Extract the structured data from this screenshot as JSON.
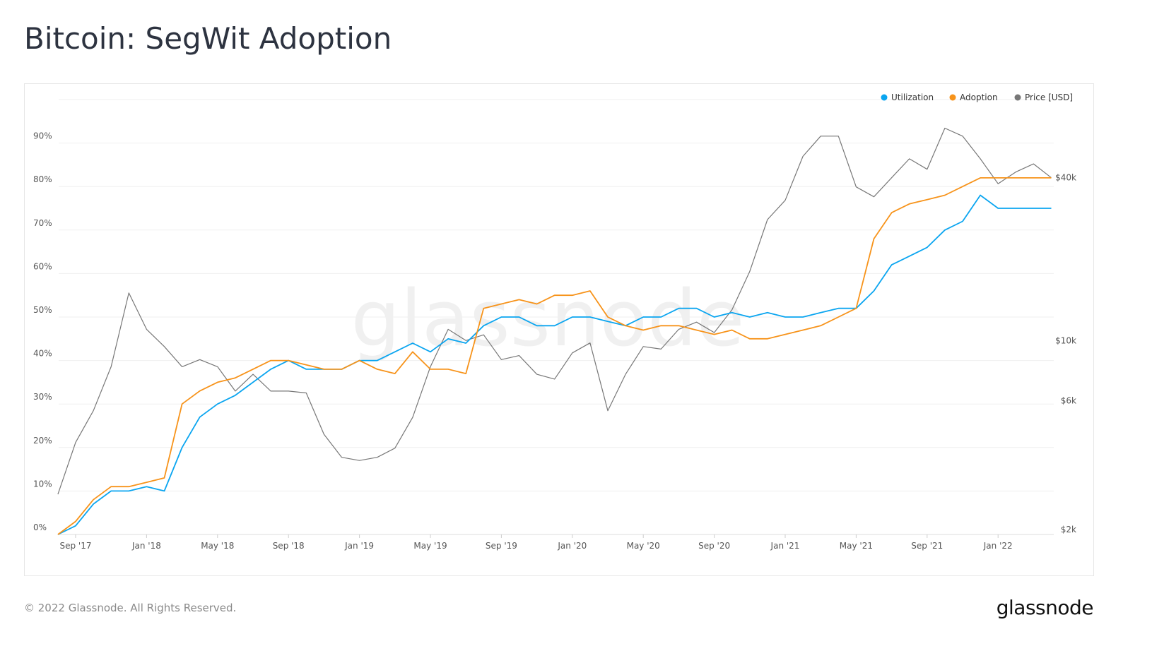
{
  "title": "Bitcoin: SegWit Adoption",
  "footer": "© 2022 Glassnode. All Rights Reserved.",
  "logo": "glassnode",
  "watermark": "glassnode",
  "chart_data": {
    "type": "line",
    "title": "Bitcoin: SegWit Adoption",
    "legend_position": "top-right",
    "grid": true,
    "x": [
      "2017-08",
      "2017-09",
      "2017-10",
      "2017-11",
      "2017-12",
      "2018-01",
      "2018-02",
      "2018-03",
      "2018-04",
      "2018-05",
      "2018-06",
      "2018-07",
      "2018-08",
      "2018-09",
      "2018-10",
      "2018-11",
      "2018-12",
      "2019-01",
      "2019-02",
      "2019-03",
      "2019-04",
      "2019-05",
      "2019-06",
      "2019-07",
      "2019-08",
      "2019-09",
      "2019-10",
      "2019-11",
      "2019-12",
      "2020-01",
      "2020-02",
      "2020-03",
      "2020-04",
      "2020-05",
      "2020-06",
      "2020-07",
      "2020-08",
      "2020-09",
      "2020-10",
      "2020-11",
      "2020-12",
      "2021-01",
      "2021-02",
      "2021-03",
      "2021-04",
      "2021-05",
      "2021-06",
      "2021-07",
      "2021-08",
      "2021-09",
      "2021-10",
      "2021-11",
      "2021-12",
      "2022-01",
      "2022-02",
      "2022-03",
      "2022-04"
    ],
    "x_ticks": [
      {
        "date": "2017-09",
        "label": "Sep '17"
      },
      {
        "date": "2018-01",
        "label": "Jan '18"
      },
      {
        "date": "2018-05",
        "label": "May '18"
      },
      {
        "date": "2018-09",
        "label": "Sep '18"
      },
      {
        "date": "2019-01",
        "label": "Jan '19"
      },
      {
        "date": "2019-05",
        "label": "May '19"
      },
      {
        "date": "2019-09",
        "label": "Sep '19"
      },
      {
        "date": "2020-01",
        "label": "Jan '20"
      },
      {
        "date": "2020-05",
        "label": "May '20"
      },
      {
        "date": "2020-09",
        "label": "Sep '20"
      },
      {
        "date": "2021-01",
        "label": "Jan '21"
      },
      {
        "date": "2021-05",
        "label": "May '21"
      },
      {
        "date": "2021-09",
        "label": "Sep '21"
      },
      {
        "date": "2022-01",
        "label": "Jan '22"
      }
    ],
    "y_left": {
      "range": [
        0,
        100
      ],
      "unit": "%",
      "ticks": [
        0,
        10,
        20,
        30,
        40,
        50,
        60,
        70,
        80,
        90
      ],
      "labels": [
        "0%",
        "10%",
        "20%",
        "30%",
        "40%",
        "50%",
        "60%",
        "70%",
        "80%",
        "90%"
      ]
    },
    "y_right": {
      "scale": "log",
      "range": [
        2000,
        64000
      ],
      "ticks": [
        2000,
        6000,
        10000,
        40000
      ],
      "labels": [
        "$2k",
        "$6k",
        "$10k",
        "$40k"
      ]
    },
    "series": [
      {
        "name": "Utilization",
        "axis": "left",
        "color": "#0aa5f0",
        "values": [
          0,
          2,
          7,
          10,
          10,
          11,
          10,
          20,
          27,
          30,
          32,
          35,
          38,
          40,
          38,
          38,
          38,
          40,
          40,
          42,
          44,
          42,
          45,
          44,
          48,
          50,
          50,
          48,
          48,
          50,
          50,
          49,
          48,
          50,
          50,
          52,
          52,
          50,
          51,
          50,
          51,
          50,
          50,
          51,
          52,
          52,
          56,
          62,
          64,
          66,
          70,
          72,
          78,
          75,
          75,
          75,
          75
        ]
      },
      {
        "name": "Adoption",
        "axis": "left",
        "color": "#f7931a",
        "values": [
          0,
          3,
          8,
          11,
          11,
          12,
          13,
          30,
          33,
          35,
          36,
          38,
          40,
          40,
          39,
          38,
          38,
          40,
          38,
          37,
          42,
          38,
          38,
          37,
          52,
          53,
          54,
          53,
          55,
          55,
          56,
          50,
          48,
          47,
          48,
          48,
          47,
          46,
          47,
          45,
          45,
          46,
          47,
          48,
          50,
          52,
          68,
          74,
          76,
          77,
          78,
          80,
          82,
          82,
          82,
          82,
          82
        ]
      },
      {
        "name": "Price [USD]",
        "axis": "right",
        "color": "#777777",
        "values": [
          2700,
          4200,
          5500,
          8000,
          15000,
          11000,
          9500,
          8000,
          8500,
          8000,
          6500,
          7500,
          6500,
          6500,
          6400,
          4500,
          3700,
          3600,
          3700,
          4000,
          5200,
          8000,
          11000,
          10000,
          10500,
          8500,
          8800,
          7500,
          7200,
          9000,
          9800,
          5500,
          7500,
          9500,
          9300,
          11000,
          11700,
          10700,
          13000,
          18000,
          28000,
          33000,
          48000,
          57000,
          57000,
          37000,
          34000,
          40000,
          47000,
          43000,
          61000,
          57000,
          47000,
          38000,
          42000,
          45000,
          40000
        ]
      }
    ]
  }
}
